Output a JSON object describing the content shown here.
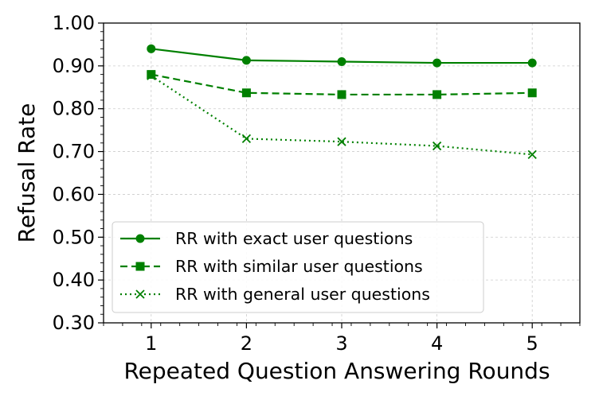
{
  "chart_data": {
    "type": "line",
    "xlabel": "Repeated Question Answering Rounds",
    "ylabel": "Refusal Rate",
    "x": [
      1,
      2,
      3,
      4,
      5
    ],
    "xlim": [
      0.5,
      5.5
    ],
    "ylim": [
      0.3,
      1.0
    ],
    "yticks": [
      "0.30",
      "0.40",
      "0.50",
      "0.60",
      "0.70",
      "0.80",
      "0.90",
      "1.00"
    ],
    "xticks": [
      "1",
      "2",
      "3",
      "4",
      "5"
    ],
    "grid": true,
    "legend_position": "bottom-left",
    "color": "#008000",
    "series": [
      {
        "name": "RR with exact user questions",
        "values": [
          0.94,
          0.913,
          0.91,
          0.907,
          0.907
        ],
        "marker": "circle",
        "line": "solid"
      },
      {
        "name": "RR with similar user questions",
        "values": [
          0.88,
          0.837,
          0.833,
          0.833,
          0.837
        ],
        "marker": "square",
        "line": "dashed"
      },
      {
        "name": "RR with general user questions",
        "values": [
          0.877,
          0.73,
          0.723,
          0.713,
          0.693
        ],
        "marker": "x",
        "line": "dotted"
      }
    ]
  }
}
